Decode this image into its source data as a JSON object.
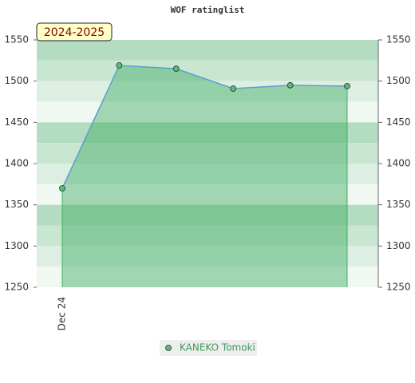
{
  "chart_data": {
    "type": "line",
    "title": "WOF ratinglist",
    "badge": "2024-2025",
    "categories": [
      "Dec 24",
      null,
      null,
      null,
      null,
      null
    ],
    "series": [
      {
        "name": "KANEKO Tomoki",
        "color": "#5b9fd0",
        "fill_color": "#3fae62",
        "marker_color": "#5fb874",
        "values": [
          1370,
          1519,
          1515,
          1491,
          1495,
          1494
        ]
      }
    ],
    "ylim": [
      1250,
      1550
    ],
    "yticks": [
      1250,
      1300,
      1350,
      1400,
      1450,
      1500,
      1550
    ],
    "y2lim": [
      1250,
      1550
    ],
    "y2ticks": [
      1250,
      1300,
      1350,
      1400,
      1450,
      1500,
      1550
    ]
  }
}
